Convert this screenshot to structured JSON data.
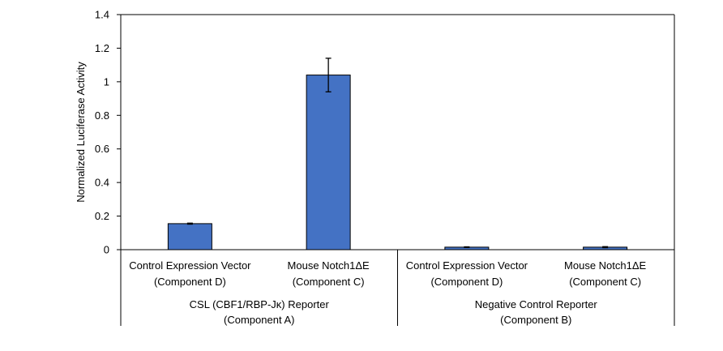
{
  "chart_data": {
    "type": "bar",
    "title": "",
    "ylabel": "Normalized Luciferase Activity",
    "ylim": [
      0,
      1.4
    ],
    "yticks": [
      0,
      0.2,
      0.4,
      0.6,
      0.8,
      1,
      1.2,
      1.4
    ],
    "ytick_labels": [
      "0",
      "0.2",
      "0.4",
      "0.6",
      "0.8",
      "1",
      "1.2",
      "1.4"
    ],
    "grid": false,
    "legend": "none",
    "bar_color": "#4472C4",
    "bars": [
      {
        "label_line1": "Control Expression Vector",
        "label_line2": "(Component D)",
        "value": 0.155,
        "error": 0.003
      },
      {
        "label_line1": "Mouse Notch1ΔE",
        "label_line2": "(Component C)",
        "value": 1.04,
        "error": 0.1
      },
      {
        "label_line1": "Control Expression Vector",
        "label_line2": "(Component D)",
        "value": 0.015,
        "error": 0.002
      },
      {
        "label_line1": "Mouse Notch1ΔE",
        "label_line2": "(Component C)",
        "value": 0.015,
        "error": 0.003
      }
    ],
    "groups": [
      {
        "label_line1": "CSL (CBF1/RBP-Jκ) Reporter",
        "label_line2": "(Component A)"
      },
      {
        "label_line1": "Negative Control Reporter",
        "label_line2": "(Component B)"
      }
    ]
  }
}
